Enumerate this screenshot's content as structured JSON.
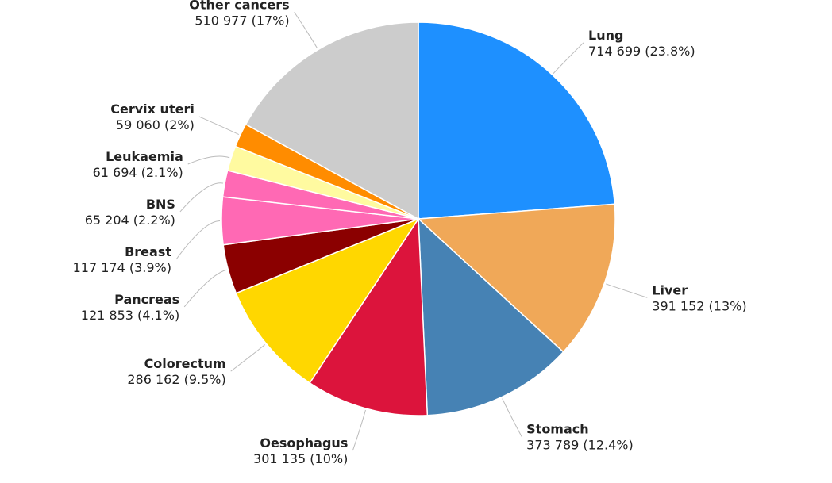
{
  "chart_data": {
    "type": "pie",
    "categories": [
      "Lung",
      "Liver",
      "Stomach",
      "Oesophagus",
      "Colorectum",
      "Pancreas",
      "Breast",
      "BNS",
      "Leukaemia",
      "Cervix uteri",
      "Other cancers"
    ],
    "values": [
      714699,
      391152,
      373789,
      301135,
      286162,
      121853,
      117174,
      65204,
      61694,
      59060,
      510977
    ],
    "value_labels": [
      "714 699 (23.8%)",
      "391 152 (13%)",
      "373 789 (12.4%)",
      "301 135 (10%)",
      "286 162 (9.5%)",
      "121 853 (4.1%)",
      "117 174 (3.9%)",
      "65 204 (2.2%)",
      "61 694 (2.1%)",
      "59 060 (2%)",
      "510 977 (17%)"
    ],
    "colors": [
      "#1e90ff",
      "#f0a858",
      "#4682b4",
      "#dc143c",
      "#ffd700",
      "#8b0000",
      "#ff69b4",
      "#ff69b4",
      "#fffaa0",
      "#ff8c00",
      "#cccccc"
    ]
  }
}
